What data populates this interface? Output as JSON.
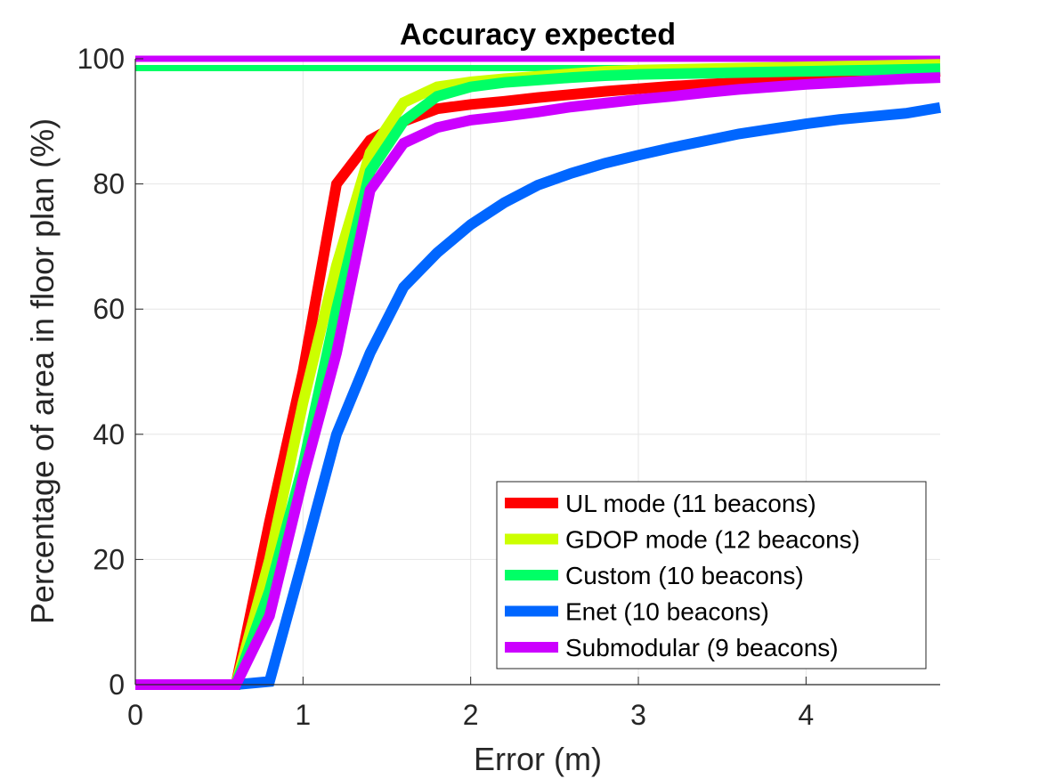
{
  "chart_data": {
    "type": "line",
    "title": "Accuracy expected",
    "xlabel": "Error (m)",
    "ylabel": "Percentage of area in floor plan (%)",
    "xlim": [
      0,
      4.8
    ],
    "ylim": [
      0,
      100
    ],
    "xticks": [
      0,
      1,
      2,
      3,
      4
    ],
    "yticks": [
      0,
      20,
      40,
      60,
      80,
      100
    ],
    "grid": true,
    "legend_position": "bottom-right",
    "x": [
      0,
      0.2,
      0.4,
      0.6,
      0.8,
      1.0,
      1.2,
      1.4,
      1.6,
      1.8,
      2.0,
      2.2,
      2.4,
      2.6,
      2.8,
      3.0,
      3.2,
      3.4,
      3.6,
      3.8,
      4.0,
      4.2,
      4.4,
      4.6,
      4.8
    ],
    "series": [
      {
        "name": "UL mode (11 beacons)",
        "color": "#ff0000",
        "values": [
          0,
          0,
          0,
          0,
          26,
          50,
          80,
          87,
          90,
          92,
          92.7,
          93.2,
          93.8,
          94.3,
          94.8,
          95.2,
          95.6,
          95.9,
          96.2,
          96.5,
          96.8,
          97.1,
          97.4,
          97.7,
          98
        ]
      },
      {
        "name": "GDOP mode (12 beacons)",
        "color": "#ccff00",
        "values": [
          0,
          0,
          0,
          0,
          20,
          45,
          67,
          85,
          93,
          95.5,
          96.3,
          96.8,
          97.2,
          97.6,
          98,
          98.2,
          98.3,
          98.4,
          98.5,
          98.6,
          98.7,
          98.8,
          98.9,
          99,
          99.1
        ]
      },
      {
        "name": "Custom (10 beacons)",
        "color": "#00ff66",
        "values": [
          0,
          0,
          0,
          0,
          15,
          35,
          60,
          82,
          90,
          94,
          95.5,
          96.2,
          96.6,
          97,
          97.3,
          97.5,
          97.6,
          97.7,
          97.8,
          97.9,
          98,
          98.1,
          98.2,
          98.3,
          98.4
        ]
      },
      {
        "name": "Enet (10 beacons)",
        "color": "#0066ff",
        "values": [
          0,
          0,
          0,
          0,
          0.5,
          20,
          40,
          53,
          63.5,
          69,
          73.5,
          77,
          79.8,
          81.7,
          83.3,
          84.6,
          85.8,
          86.9,
          88,
          88.8,
          89.6,
          90.3,
          90.8,
          91.3,
          92.2
        ]
      },
      {
        "name": "Submodular (9 beacons)",
        "color": "#cc00ff",
        "values": [
          0,
          0,
          0,
          0,
          11,
          33,
          53,
          79,
          86.5,
          89,
          90.2,
          90.8,
          91.5,
          92.3,
          92.9,
          93.5,
          94,
          94.6,
          95.1,
          95.5,
          95.9,
          96.2,
          96.5,
          96.8,
          97
        ]
      }
    ],
    "reference_lines": [
      {
        "color": "#cc00ff",
        "y": 100
      },
      {
        "color": "#00ff66",
        "y": 98.5
      }
    ]
  }
}
